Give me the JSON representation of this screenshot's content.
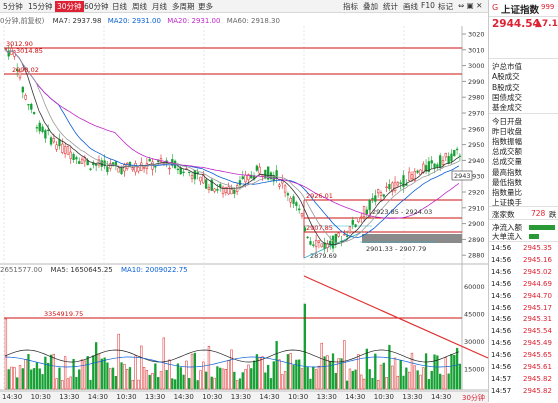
{
  "toolbar": {
    "periods": [
      "5分钟",
      "15分钟",
      "30分钟",
      "60分钟",
      "日线",
      "周线",
      "月线",
      "多周期",
      "更多"
    ],
    "active_period": "30分钟",
    "buttons": [
      "指标",
      "叠加",
      "统计",
      "画线",
      "F10",
      "标记"
    ]
  },
  "chart_info": {
    "period_label": "0分钟,前复权)",
    "ma7": "MA7: 2937.98",
    "ma20": "MA20: 2931.00",
    "ma60": "MA20: 2931.00",
    "ma60b": "MA60: 2918.30"
  },
  "volume_info": {
    "vol": "2651577.00",
    "ma5": "MA5: 1650645.25",
    "ma10": "MA10: 2009022.75"
  },
  "price_axis": [
    "3020",
    "3010",
    "3000",
    "2990",
    "2980",
    "2970",
    "2960",
    "2950",
    "2940",
    "2930",
    "2920",
    "2910",
    "2900",
    "2890",
    "2880"
  ],
  "vol_axis": [
    "60000",
    "45000",
    "30000",
    "15000"
  ],
  "current_price_tag": "2943",
  "annotations": {
    "line1": "3012.90",
    "line1b": "3014.85",
    "line2": "2998.02",
    "line3": "2926.01",
    "line4": "2923.85 - 2924.03",
    "line5": "2907.85",
    "line6": "2901.33 - 2907.79",
    "low": "2879.69",
    "vol_line": "3354919.75"
  },
  "time_axis": [
    "14:30",
    "10:30",
    "13:30",
    "14:30",
    "10:30",
    "13:30",
    "14:30",
    "10:30",
    "13:30",
    "14:30",
    "10:30",
    "13:30",
    "14:30",
    "10:30",
    "13:30",
    "14:30"
  ],
  "bottom_tab": "30分钟",
  "right_panel": {
    "code_prefix": "G",
    "title": "上证指数",
    "code": "999",
    "price": "2944.54",
    "change": "▲7.1",
    "labels_group1": [
      "沪总市值",
      "A股成交",
      "B股成交",
      "国债成交",
      "基金成交"
    ],
    "labels_group2": [
      "今日开盘",
      "昨日收盘",
      "指数振幅",
      "总成交额",
      "总成交量",
      "最高指数",
      "最低指数",
      "指数量比",
      "上证换手"
    ],
    "rise_label": "涨家数",
    "rise_value": "728",
    "fall_label": "跌",
    "net_inflow": "净流入额",
    "big_order": "大单流入",
    "ticks": [
      {
        "time": "14:56",
        "price": "2945.35"
      },
      {
        "time": "14:56",
        "price": "2945.16"
      },
      {
        "time": "14:56",
        "price": "2945.02"
      },
      {
        "time": "14:56",
        "price": "2944.69"
      },
      {
        "time": "14:56",
        "price": "2944.70"
      },
      {
        "time": "14:56",
        "price": "2945.17"
      },
      {
        "time": "14:56",
        "price": "2945.31"
      },
      {
        "time": "14:56",
        "price": "2945.54"
      },
      {
        "time": "14:56",
        "price": "2945.49"
      },
      {
        "time": "14:56",
        "price": "2945.65"
      },
      {
        "time": "14:56",
        "price": "2945.61"
      },
      {
        "time": "14:57",
        "price": "2945.82"
      },
      {
        "time": "14:57",
        "price": "2945.82"
      }
    ]
  },
  "colors": {
    "up": "#dd2222",
    "down": "#16a034",
    "ma7": "#333333",
    "ma20": "#0a5fd8",
    "ma60": "#c028c8",
    "support": "#cc1111"
  }
}
